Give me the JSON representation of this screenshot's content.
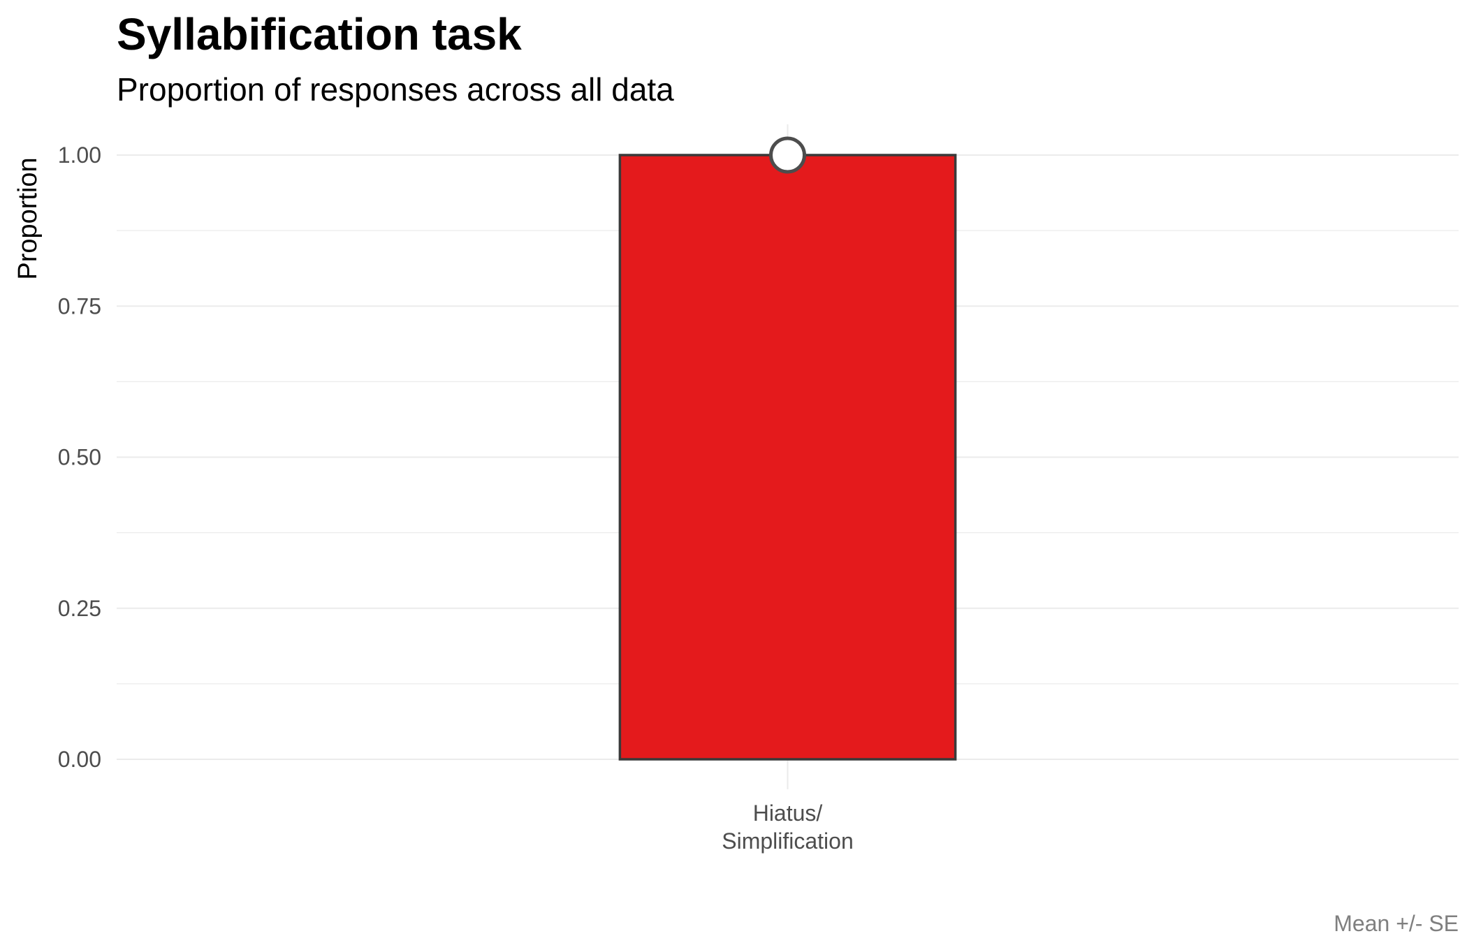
{
  "chart_data": {
    "type": "bar",
    "title": "Syllabification task",
    "subtitle": "Proportion of responses across all data",
    "xlabel": "",
    "ylabel": "Proportion",
    "caption": "Mean +/- SE",
    "categories": [
      [
        "Hiatus/",
        "Simplification"
      ]
    ],
    "values": [
      1.0
    ],
    "error": [
      0.0
    ],
    "ylim": [
      0,
      1.0
    ],
    "yticks": [
      0.0,
      0.25,
      0.5,
      0.75,
      1.0
    ],
    "ytick_labels": [
      "0.00",
      "0.25",
      "0.50",
      "0.75",
      "1.00"
    ],
    "grid": true,
    "legend": "none",
    "colors": {
      "bar_fill": "#e41a1c",
      "bar_outline": "#3a3a3a",
      "point_fill": "#ffffff",
      "point_outline": "#4d4d4d",
      "grid": "#ebebeb"
    }
  }
}
